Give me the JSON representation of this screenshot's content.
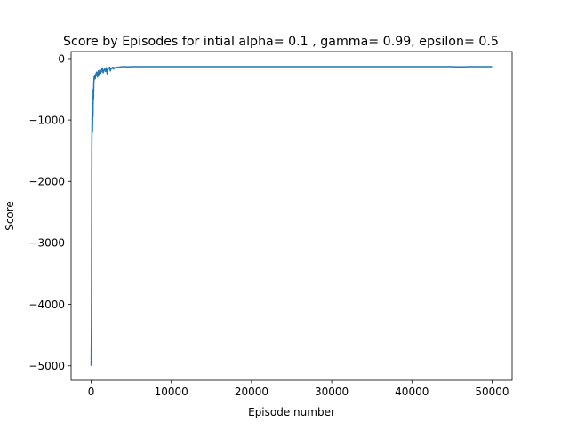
{
  "chart_data": {
    "type": "line",
    "title": "Score by Episodes for intial alpha= 0.1 , gamma= 0.99, epsilon= 0.5",
    "xlabel": "Episode number",
    "ylabel": "Score",
    "xlim": [
      -2500,
      52500
    ],
    "ylim": [
      -5235,
      115
    ],
    "xticks": [
      0,
      10000,
      20000,
      30000,
      40000,
      50000
    ],
    "xtick_labels": [
      "0",
      "10000",
      "20000",
      "30000",
      "40000",
      "50000"
    ],
    "yticks": [
      0,
      -1000,
      -2000,
      -3000,
      -4000,
      -5000
    ],
    "ytick_labels": [
      "0",
      "−1000",
      "−2000",
      "−3000",
      "−4000",
      "−5000"
    ],
    "grid": false,
    "legend": "none",
    "series": [
      {
        "color": "#1f77b4",
        "x": [
          0,
          40,
          80,
          130,
          160,
          200,
          230,
          260,
          300,
          330,
          380,
          450,
          500,
          600,
          700,
          800,
          900,
          1000,
          1100,
          1200,
          1300,
          1400,
          1500,
          1600,
          1700,
          1800,
          1900,
          2000,
          2100,
          2200,
          2300,
          2400,
          2500,
          2600,
          2700,
          2800,
          2900,
          3000,
          3100,
          3200,
          3300,
          3500,
          3700,
          4000,
          4500,
          5000,
          6000,
          8000,
          10000,
          15000,
          20000,
          25000,
          30000,
          35000,
          40000,
          45000,
          46000,
          47000,
          50000
        ],
        "y": [
          -5000,
          -4200,
          -1500,
          -800,
          -1200,
          -850,
          -950,
          -500,
          -650,
          -400,
          -300,
          -270,
          -330,
          -250,
          -220,
          -300,
          -200,
          -260,
          -180,
          -240,
          -200,
          -150,
          -230,
          -190,
          -170,
          -210,
          -150,
          -250,
          -170,
          -160,
          -140,
          -200,
          -150,
          -160,
          -140,
          -170,
          -145,
          -150,
          -160,
          -145,
          -140,
          -140,
          -135,
          -130,
          -135,
          -130,
          -130,
          -130,
          -130,
          -130,
          -130,
          -130,
          -130,
          -130,
          -130,
          -130,
          -135,
          -130,
          -130
        ]
      }
    ]
  }
}
